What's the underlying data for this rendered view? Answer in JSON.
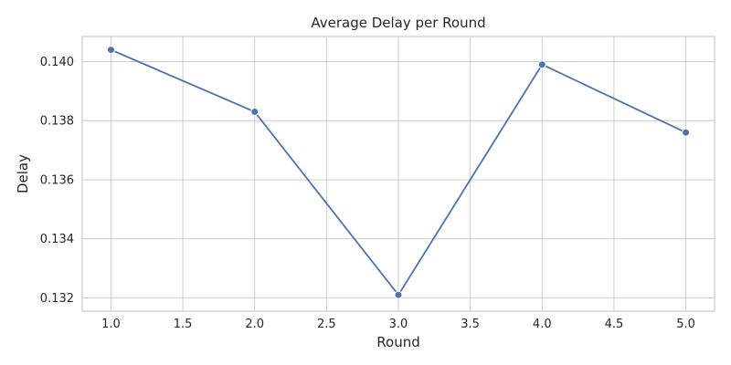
{
  "chart_data": {
    "type": "line",
    "title": "Average Delay per Round",
    "xlabel": "Round",
    "ylabel": "Delay",
    "xlim": [
      0.8,
      5.2
    ],
    "ylim": [
      0.13155,
      0.14085
    ],
    "grid": true,
    "xticks": [
      1.0,
      1.5,
      2.0,
      2.5,
      3.0,
      3.5,
      4.0,
      4.5,
      5.0
    ],
    "xtick_labels": [
      "1.0",
      "1.5",
      "2.0",
      "2.5",
      "3.0",
      "3.5",
      "4.0",
      "4.5",
      "5.0"
    ],
    "yticks": [
      0.132,
      0.134,
      0.136,
      0.138,
      0.14
    ],
    "ytick_labels": [
      "0.132",
      "0.134",
      "0.136",
      "0.138",
      "0.140"
    ],
    "series": [
      {
        "x": [
          1.0,
          2.0,
          3.0,
          4.0,
          5.0
        ],
        "values": [
          0.1404,
          0.1383,
          0.1321,
          0.1399,
          0.1376
        ],
        "color": "#4c72b0",
        "marker": "circle"
      }
    ]
  }
}
